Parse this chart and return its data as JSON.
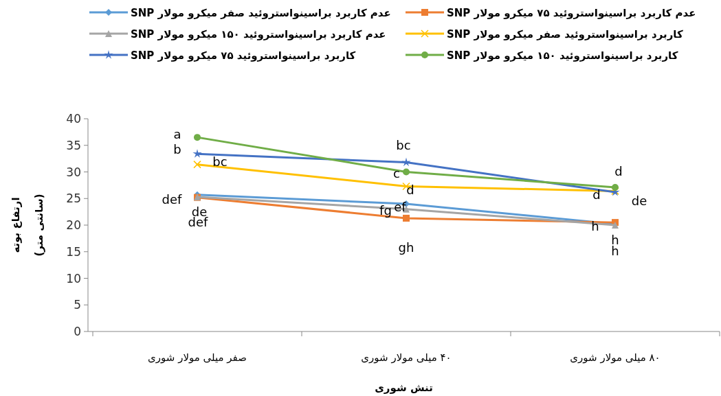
{
  "chart_data": {
    "type": "line",
    "xlabel": "تنش شوری",
    "ylabel": "ارتفاع بوته (سانتی متر)",
    "categories": [
      "صفر میلی مولار شوری",
      "۴۰ میلی مولار شوری",
      "۸۰ میلی مولار شوری"
    ],
    "series": [
      {
        "name": "عدم کاربرد براسینواستروئید صفر میکرو مولار SNP",
        "color": "#5b9bd5",
        "marker": "diamond",
        "values": [
          25.7,
          24.0,
          20.2
        ]
      },
      {
        "name": "عدم کاربرد براسینواستروئید ۷۵ میکرو مولار SNP",
        "color": "#ed7d31",
        "marker": "square",
        "values": [
          25.2,
          21.3,
          20.5
        ]
      },
      {
        "name": "عدم کاربرد براسینواستروئید ۱۵۰ میکرو مولار SNP",
        "color": "#a5a5a5",
        "marker": "triangle",
        "values": [
          25.3,
          23.0,
          20.0
        ]
      },
      {
        "name": "کاربرد براسینواستروئید صفر میکرو مولار SNP",
        "color": "#ffc000",
        "marker": "cross",
        "values": [
          31.4,
          27.3,
          26.4
        ]
      },
      {
        "name": "کاربرد براسینواستروئید ۷۵ میکرو مولار SNP",
        "color": "#4472c4",
        "marker": "star",
        "values": [
          33.4,
          31.8,
          26.2
        ]
      },
      {
        "name": "کاربرد براسینواستروئید ۱۵۰ میکرو مولار SNP",
        "color": "#70ad47",
        "marker": "circle",
        "values": [
          36.5,
          30.0,
          27.1
        ]
      }
    ],
    "ylim": [
      0,
      40
    ],
    "yticks": [
      0,
      5,
      10,
      15,
      20,
      25,
      30,
      35,
      40
    ],
    "grid": false,
    "legend": "top",
    "line_style": "solid",
    "annotations": [
      {
        "text": "a",
        "x": "صفر میلی مولار شوری",
        "y": 36.5
      },
      {
        "text": "b",
        "x": "صفر میلی مولار شوری",
        "y": 33.4
      },
      {
        "text": "bc",
        "x": "صفر میلی مولار شوری",
        "y": 31.4
      },
      {
        "text": "de",
        "x": "صفر میلی مولار شوری",
        "y": 25.7
      },
      {
        "text": "def",
        "x": "صفر میلی مولار شوری",
        "y": 25.2
      },
      {
        "text": "def",
        "x": "صفر میلی مولار شوری",
        "y": 25.3
      },
      {
        "text": "bc",
        "x": "۴۰ میلی مولار شوری",
        "y": 31.8
      },
      {
        "text": "c",
        "x": "۴۰ میلی مولار شوری",
        "y": 30.0
      },
      {
        "text": "d",
        "x": "۴۰ میلی مولار شوری",
        "y": 27.3
      },
      {
        "text": "ef",
        "x": "۴۰ میلی مولار شوری",
        "y": 24.0
      },
      {
        "text": "fg",
        "x": "۴۰ میلی مولار شوری",
        "y": 23.0
      },
      {
        "text": "gh",
        "x": "۴۰ میلی مولار شوری",
        "y": 21.3
      },
      {
        "text": "d",
        "x": "۸۰ میلی مولار شوری",
        "y": 27.1
      },
      {
        "text": "d",
        "x": "۸۰ میلی مولار شوری",
        "y": 26.4
      },
      {
        "text": "de",
        "x": "۸۰ میلی مولار شوری",
        "y": 26.2
      },
      {
        "text": "h",
        "x": "۸۰ میلی مولار شوری",
        "y": 20.2
      },
      {
        "text": "h",
        "x": "۸۰ میلی مولار شوری",
        "y": 20.5
      },
      {
        "text": "h",
        "x": "۸۰ میلی مولار شوری",
        "y": 20.0
      }
    ]
  }
}
